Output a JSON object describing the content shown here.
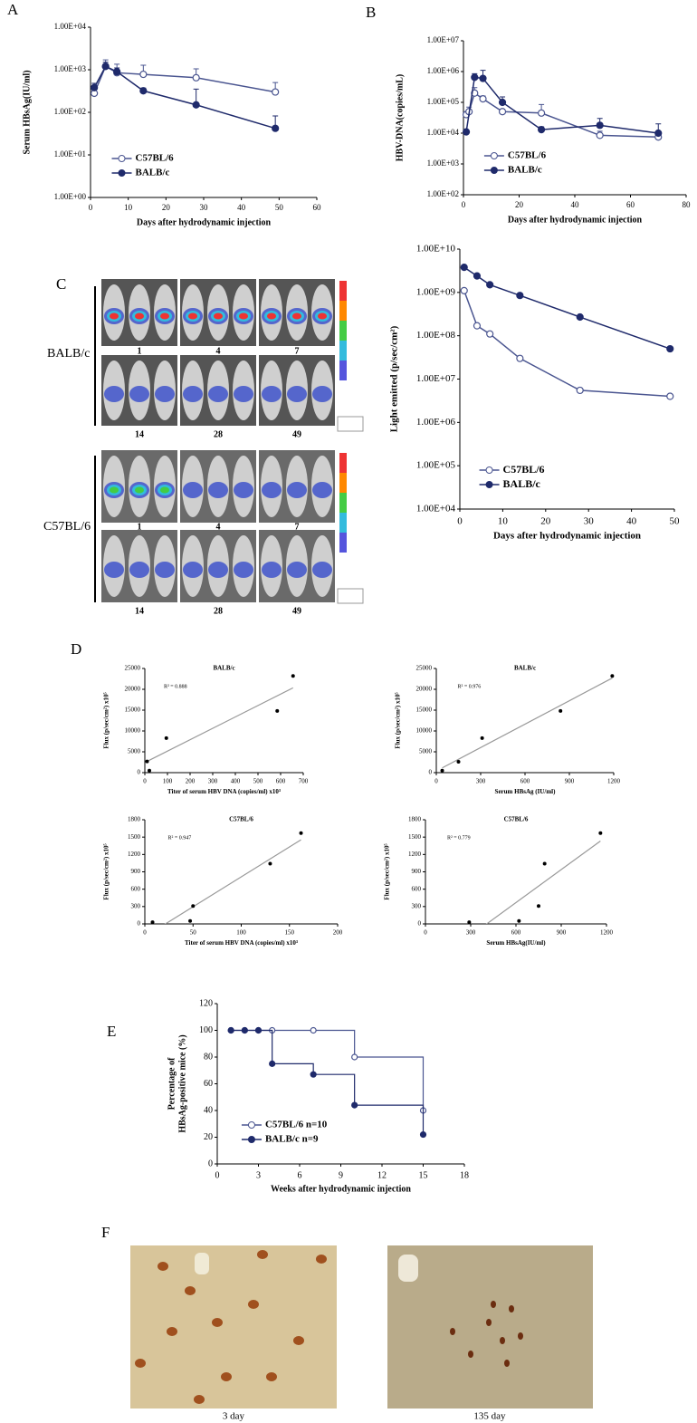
{
  "chart_data": [
    {
      "type": "line",
      "log": true,
      "xlabel": "Days after hydrodynamic injection",
      "ylabel": "Serum HBsAg(IU/ml)",
      "legend": "lower left",
      "xlim": [
        0,
        60
      ],
      "xticks": [
        0,
        10,
        20,
        30,
        40,
        50,
        60
      ],
      "ylim": [
        1,
        10000
      ],
      "yticks": [
        {
          "value": 1,
          "label": "1.00E+00"
        },
        {
          "value": 10,
          "label": "1.00E+01"
        },
        {
          "value": 100,
          "label": "1.00E+02"
        },
        {
          "value": 1000,
          "label": "1.00E+03"
        },
        {
          "value": 10000,
          "label": "1.00E+04"
        }
      ],
      "series": [
        {
          "name": "C57BL/6",
          "color": "#4a5590",
          "marker": "open",
          "x": [
            1,
            4,
            7,
            14,
            28,
            49
          ],
          "values": [
            280,
            1200,
            850,
            780,
            650,
            300
          ],
          "errors": [
            150,
            500,
            500,
            500,
            400,
            200
          ]
        },
        {
          "name": "BALB/c",
          "color": "#1f2a6b",
          "marker": "filled",
          "x": [
            1,
            4,
            7,
            14,
            28,
            49
          ],
          "values": [
            380,
            1200,
            900,
            320,
            150,
            42
          ],
          "errors": [
            100,
            300,
            200,
            50,
            200,
            40
          ]
        }
      ]
    },
    {
      "type": "line",
      "log": true,
      "xlabel": "Days after hydrodynamic injection",
      "ylabel": "HBV-DNA(copies/mL)",
      "legend": "lower left",
      "xlim": [
        0,
        80
      ],
      "xticks": [
        0,
        20,
        40,
        60,
        80
      ],
      "ylim": [
        100,
        10000000
      ],
      "yticks": [
        {
          "value": 100,
          "label": "1.00E+02"
        },
        {
          "value": 1000,
          "label": "1.00E+03"
        },
        {
          "value": 10000,
          "label": "1.00E+04"
        },
        {
          "value": 100000,
          "label": "1.00E+05"
        },
        {
          "value": 1000000,
          "label": "1.00E+06"
        },
        {
          "value": 10000000,
          "label": "1.00E+07"
        }
      ],
      "series": [
        {
          "name": "C57BL/6",
          "color": "#4a5590",
          "marker": "open",
          "x": [
            1,
            2,
            4,
            7,
            14,
            28,
            49,
            70
          ],
          "values": [
            40000,
            50000,
            200000,
            130000,
            50000,
            45000,
            8500,
            7500
          ],
          "errors": [
            10000,
            20000,
            100000,
            30000,
            10000,
            40000,
            3000,
            2000
          ]
        },
        {
          "name": "BALB/c",
          "color": "#1f2a6b",
          "marker": "filled",
          "x": [
            1,
            4,
            7,
            14,
            28,
            49,
            70
          ],
          "values": [
            11000,
            650000,
            600000,
            100000,
            13000,
            18000,
            10000
          ],
          "errors": [
            2000,
            200000,
            500000,
            50000,
            3000,
            12000,
            10000
          ]
        }
      ]
    },
    {
      "type": "line",
      "log": true,
      "xlabel": "Days after hydrodynamic injection",
      "ylabel": "Light emitted (p/sec/cm²)",
      "legend": "lower left",
      "xlim": [
        0,
        50
      ],
      "xticks": [
        0,
        10,
        20,
        30,
        40,
        50
      ],
      "ylim": [
        10000,
        10000000000
      ],
      "yticks": [
        {
          "value": 10000,
          "label": "1.00E+04"
        },
        {
          "value": 100000,
          "label": "1.00E+05"
        },
        {
          "value": 1000000,
          "label": "1.00E+06"
        },
        {
          "value": 10000000,
          "label": "1.00E+07"
        },
        {
          "value": 100000000,
          "label": "1.00E+08"
        },
        {
          "value": 1000000000,
          "label": "1.00E+09"
        },
        {
          "value": 10000000000,
          "label": "1.00E+10"
        }
      ],
      "series": [
        {
          "name": "C57BL/6",
          "color": "#4a5590",
          "marker": "open",
          "x": [
            1,
            4,
            7,
            14,
            28,
            49
          ],
          "values": [
            1100000000,
            170000000,
            110000000,
            30000000,
            5500000,
            4000000
          ]
        },
        {
          "name": "BALB/c",
          "color": "#1f2a6b",
          "marker": "filled",
          "x": [
            1,
            4,
            7,
            14,
            28,
            49
          ],
          "values": [
            3800000000,
            2400000000,
            1500000000,
            850000000,
            270000000,
            50000000
          ]
        }
      ]
    },
    {
      "type": "scatter",
      "title": "BALB/c",
      "annotation": "R² = 0.888",
      "trendline": true,
      "color": "#000000",
      "xlabel": "Titer of serum HBV DNA (copies/ml) x10³",
      "ylabel": "Flux (p/sec/cm²) x10⁵",
      "xlim": [
        0,
        700
      ],
      "xticks": [
        0,
        100,
        200,
        300,
        400,
        500,
        600,
        700
      ],
      "ylim": [
        0,
        25000
      ],
      "yticks": [
        0,
        5000,
        10000,
        15000,
        20000,
        25000
      ],
      "x": [
        10,
        20,
        95,
        585,
        655
      ],
      "values": [
        2700,
        500,
        8300,
        14800,
        23200
      ]
    },
    {
      "type": "scatter",
      "title": "BALB/c",
      "annotation": "R² = 0.976",
      "trendline": true,
      "color": "#000000",
      "xlabel": "Serum HBsAg (IU/ml)",
      "ylabel": "Flux (p/sec/cm²) x10⁵",
      "xlim": [
        0,
        1200
      ],
      "xticks": [
        0,
        300,
        600,
        900,
        1200
      ],
      "ylim": [
        0,
        25000
      ],
      "yticks": [
        0,
        5000,
        10000,
        15000,
        20000,
        25000
      ],
      "x": [
        40,
        150,
        310,
        840,
        1190
      ],
      "values": [
        500,
        2600,
        8300,
        14800,
        23200
      ]
    },
    {
      "type": "scatter",
      "title": "C57BL/6",
      "annotation": "R² = 0.947",
      "trendline": true,
      "color": "#000000",
      "xlabel": "Titer of serum HBV DNA (copies/ml) x10³",
      "ylabel": "Flux (p/sec/cm²) x10⁵",
      "xlim": [
        0,
        200
      ],
      "xticks": [
        0,
        50,
        100,
        150,
        200
      ],
      "ylim": [
        0,
        1800
      ],
      "yticks": [
        0,
        300,
        600,
        900,
        1200,
        1500,
        1800
      ],
      "x": [
        8,
        47,
        50,
        130,
        162
      ],
      "values": [
        30,
        50,
        310,
        1040,
        1570
      ]
    },
    {
      "type": "scatter",
      "title": "C57BL/6",
      "annotation": "R² = 0.779",
      "trendline": true,
      "color": "#000000",
      "xlabel": "Serum HBsAg(IU/ml)",
      "ylabel": "Flux (p/sec/cm²) x10⁵",
      "xlim": [
        0,
        1200
      ],
      "xticks": [
        0,
        300,
        600,
        900,
        1200
      ],
      "ylim": [
        0,
        1800
      ],
      "yticks": [
        0,
        300,
        600,
        900,
        1200,
        1500,
        1800
      ],
      "x": [
        290,
        620,
        750,
        790,
        1160
      ],
      "values": [
        30,
        50,
        310,
        1040,
        1570
      ]
    },
    {
      "type": "step",
      "xlabel": "Weeks after hydrodynamic injection",
      "ylabel": [
        "Percentage of",
        "HBsAg-positive mice (%)"
      ],
      "legend": "lower left",
      "xlim": [
        0,
        18
      ],
      "xticks": [
        0,
        3,
        6,
        9,
        12,
        15,
        18
      ],
      "ylim": [
        0,
        120
      ],
      "yticks": [
        0,
        20,
        40,
        60,
        80,
        100,
        120
      ],
      "series": [
        {
          "name": "C57BL/6 n=10",
          "color": "#4a5590",
          "marker": "open",
          "x": [
            1,
            2,
            3,
            4,
            7,
            10,
            15
          ],
          "values": [
            100,
            100,
            100,
            100,
            100,
            80,
            40
          ]
        },
        {
          "name": "BALB/c  n=9",
          "color": "#1f2a6b",
          "marker": "filled",
          "x": [
            1,
            2,
            3,
            4,
            7,
            10,
            15
          ],
          "values": [
            100,
            100,
            100,
            75,
            67,
            44,
            22
          ]
        }
      ]
    }
  ],
  "figure": {
    "panels": [
      "A",
      "B",
      "C",
      "D",
      "E",
      "F"
    ],
    "imaging": {
      "strains": [
        "BALB/c",
        "C57BL/6"
      ],
      "days": [
        "1",
        "4",
        "7",
        "14",
        "28",
        "49"
      ]
    },
    "histology": {
      "captions": [
        "3 day",
        "135 day"
      ]
    }
  }
}
